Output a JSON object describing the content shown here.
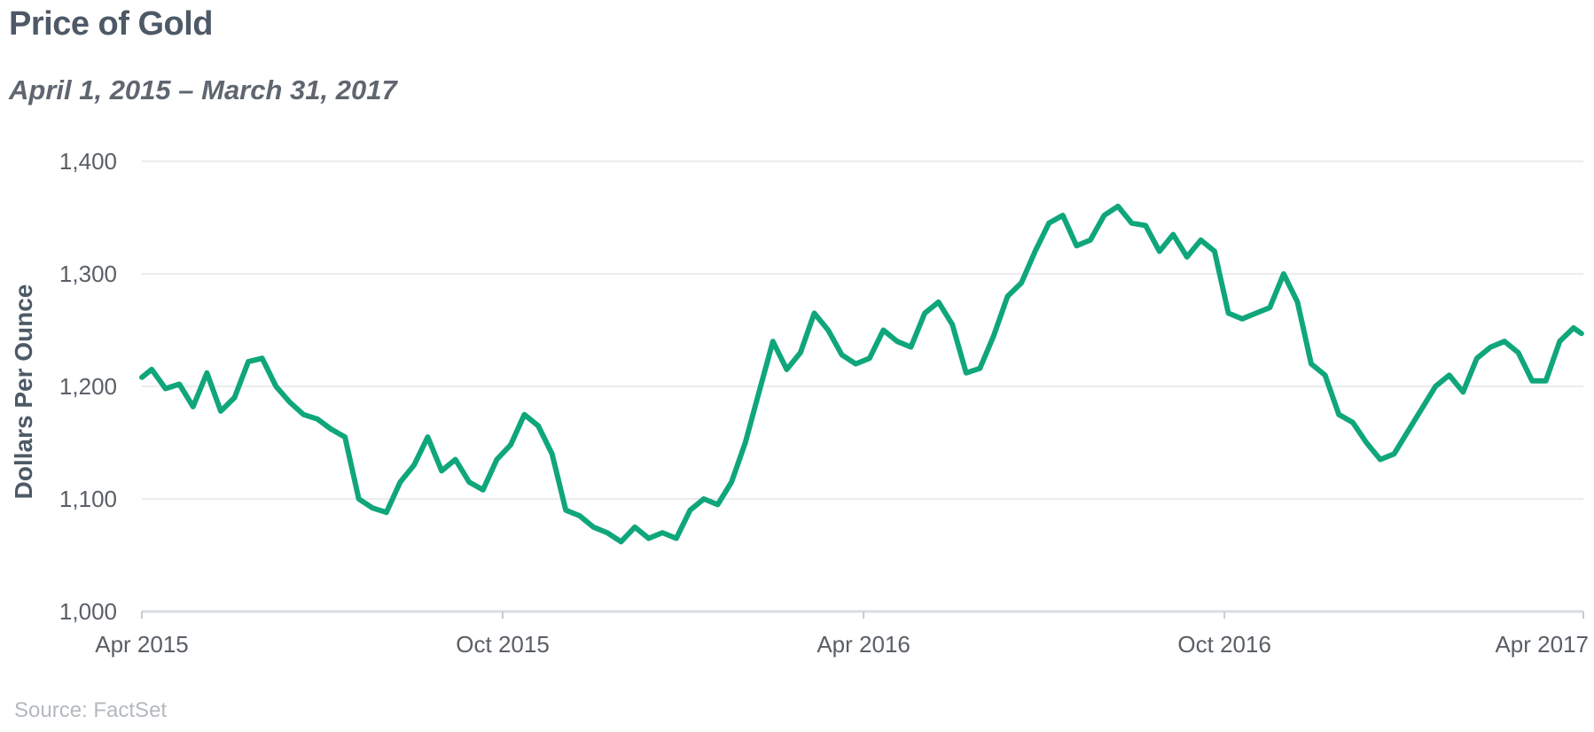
{
  "chart_data": {
    "type": "line",
    "title": "Price of Gold",
    "subtitle": "April 1, 2015 – March 31, 2017",
    "ylabel": "Dollars Per Ounce",
    "xlabel": "",
    "source": "Source: FactSet",
    "ylim": [
      1000,
      1400
    ],
    "yticks": [
      1000,
      1100,
      1200,
      1300,
      1400
    ],
    "ytick_labels": [
      "1,000",
      "1,100",
      "1,200",
      "1,300",
      "1,400"
    ],
    "xlim": [
      "2015-04-01",
      "2017-04-01"
    ],
    "xticks": [
      "2015-04-01",
      "2015-10-01",
      "2016-04-01",
      "2016-10-01",
      "2017-04-01"
    ],
    "xtick_labels": [
      "Apr 2015",
      "Oct 2015",
      "Apr 2016",
      "Oct 2016",
      "Apr 2017"
    ],
    "grid": true,
    "line_color": "#0fa67b",
    "series": [
      {
        "x": [
          "2015-04-01",
          "2015-04-06",
          "2015-04-13",
          "2015-04-20",
          "2015-04-27",
          "2015-05-04",
          "2015-05-11",
          "2015-05-18",
          "2015-05-25",
          "2015-06-01",
          "2015-06-08",
          "2015-06-15",
          "2015-06-22",
          "2015-06-29",
          "2015-07-06",
          "2015-07-13",
          "2015-07-20",
          "2015-07-27",
          "2015-08-03",
          "2015-08-10",
          "2015-08-17",
          "2015-08-24",
          "2015-08-31",
          "2015-09-07",
          "2015-09-14",
          "2015-09-21",
          "2015-09-28",
          "2015-10-05",
          "2015-10-12",
          "2015-10-19",
          "2015-10-26",
          "2015-11-02",
          "2015-11-09",
          "2015-11-16",
          "2015-11-23",
          "2015-11-30",
          "2015-12-07",
          "2015-12-14",
          "2015-12-21",
          "2015-12-28",
          "2016-01-04",
          "2016-01-11",
          "2016-01-18",
          "2016-01-25",
          "2016-02-01",
          "2016-02-08",
          "2016-02-15",
          "2016-02-22",
          "2016-02-29",
          "2016-03-07",
          "2016-03-14",
          "2016-03-21",
          "2016-03-28",
          "2016-04-04",
          "2016-04-11",
          "2016-04-18",
          "2016-04-25",
          "2016-05-02",
          "2016-05-09",
          "2016-05-16",
          "2016-05-23",
          "2016-05-30",
          "2016-06-06",
          "2016-06-13",
          "2016-06-20",
          "2016-06-27",
          "2016-07-04",
          "2016-07-11",
          "2016-07-18",
          "2016-07-25",
          "2016-08-01",
          "2016-08-08",
          "2016-08-15",
          "2016-08-22",
          "2016-08-29",
          "2016-09-05",
          "2016-09-12",
          "2016-09-19",
          "2016-09-26",
          "2016-10-03",
          "2016-10-10",
          "2016-10-17",
          "2016-10-24",
          "2016-10-31",
          "2016-11-07",
          "2016-11-14",
          "2016-11-21",
          "2016-11-28",
          "2016-12-05",
          "2016-12-12",
          "2016-12-19",
          "2016-12-26",
          "2017-01-02",
          "2017-01-09",
          "2017-01-16",
          "2017-01-23",
          "2017-01-30",
          "2017-02-06",
          "2017-02-13",
          "2017-02-20",
          "2017-02-27",
          "2017-03-06",
          "2017-03-13",
          "2017-03-20",
          "2017-03-27",
          "2017-03-31"
        ],
        "values": [
          1208,
          1215,
          1198,
          1202,
          1182,
          1212,
          1178,
          1190,
          1222,
          1225,
          1200,
          1186,
          1175,
          1171,
          1162,
          1155,
          1100,
          1092,
          1088,
          1115,
          1130,
          1155,
          1125,
          1135,
          1115,
          1108,
          1135,
          1148,
          1175,
          1165,
          1140,
          1090,
          1085,
          1075,
          1070,
          1062,
          1075,
          1065,
          1070,
          1065,
          1090,
          1100,
          1095,
          1115,
          1150,
          1195,
          1240,
          1215,
          1230,
          1265,
          1250,
          1228,
          1220,
          1225,
          1250,
          1240,
          1235,
          1265,
          1275,
          1255,
          1212,
          1216,
          1245,
          1280,
          1292,
          1320,
          1345,
          1352,
          1325,
          1330,
          1352,
          1360,
          1345,
          1343,
          1320,
          1335,
          1315,
          1330,
          1320,
          1265,
          1260,
          1265,
          1270,
          1300,
          1275,
          1220,
          1210,
          1175,
          1168,
          1150,
          1135,
          1140,
          1160,
          1180,
          1200,
          1210,
          1195,
          1225,
          1235,
          1240,
          1230,
          1205,
          1205,
          1240,
          1252,
          1247
        ]
      }
    ]
  }
}
